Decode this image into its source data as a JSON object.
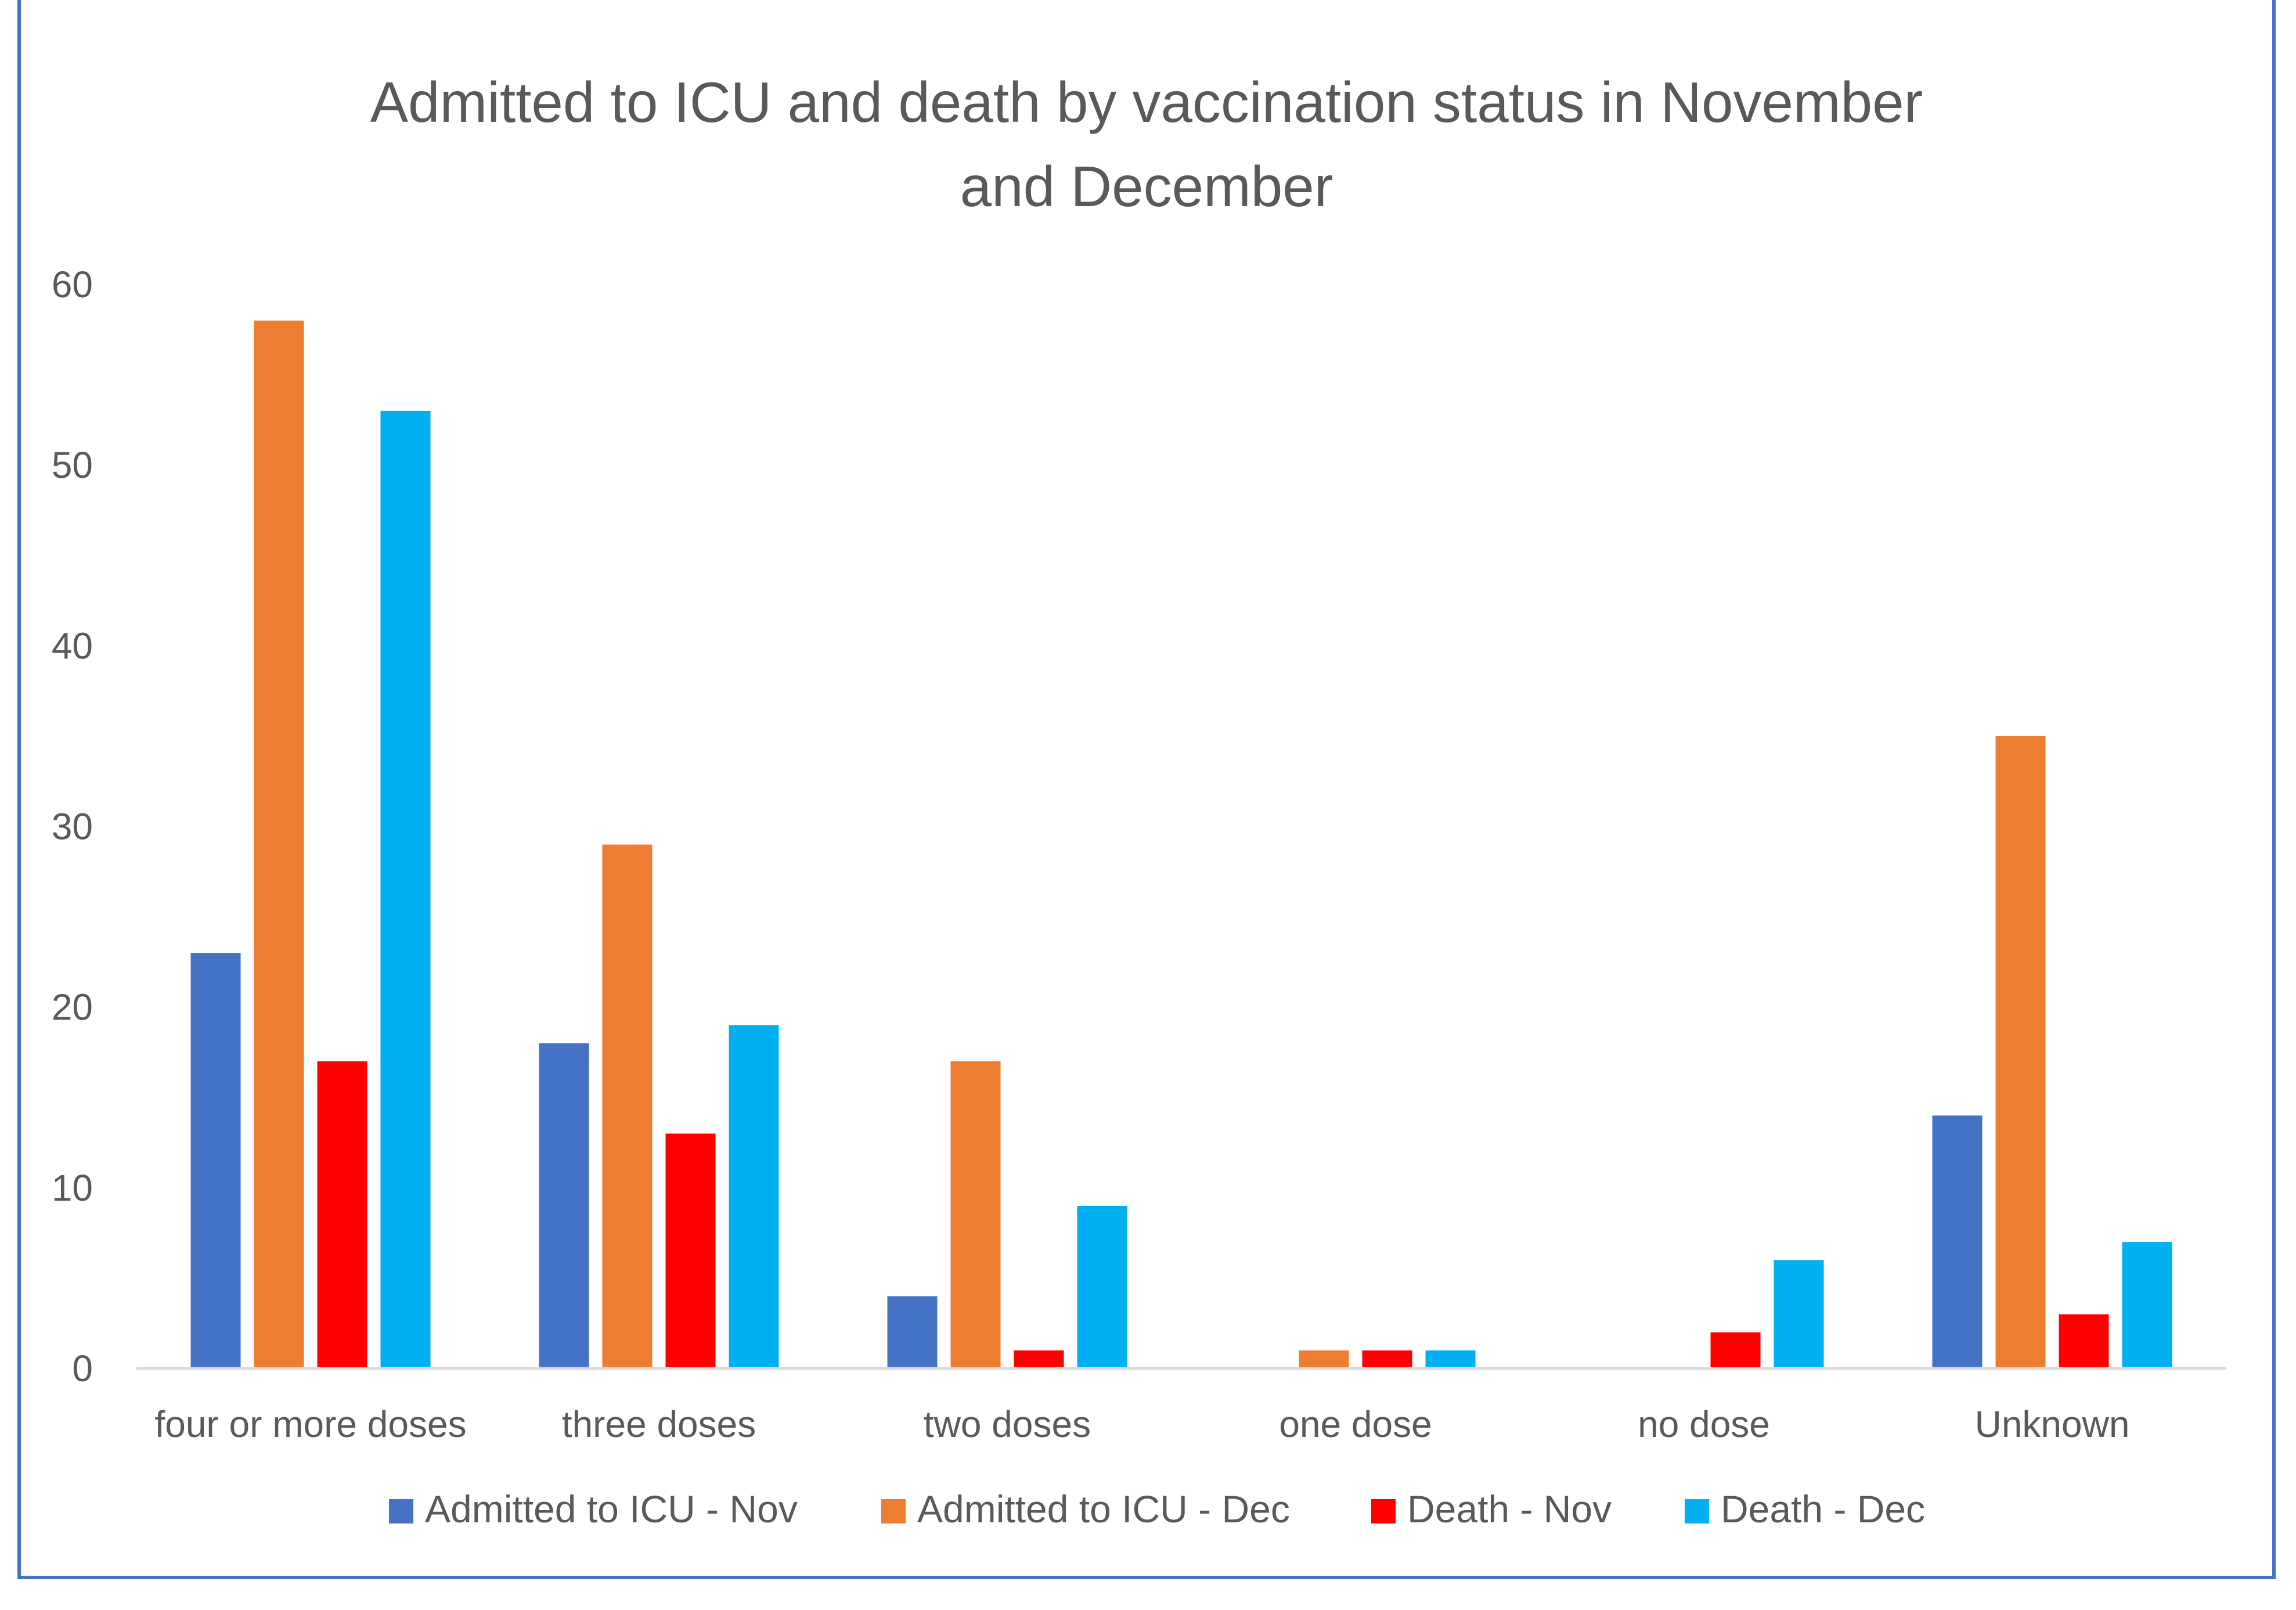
{
  "chart_data": {
    "type": "bar",
    "title": "Admitted to ICU and death by vaccination status in November and December",
    "title_lines": [
      "Admitted to ICU and death by vaccination status in November",
      "and December"
    ],
    "xlabel": "",
    "ylabel": "",
    "ylim": [
      0,
      60
    ],
    "yticks": [
      "0",
      "10",
      "20",
      "30",
      "40",
      "50",
      "60"
    ],
    "grid": false,
    "legend_position": "bottom",
    "categories": [
      "four or more doses",
      "three doses",
      "two doses",
      "one dose",
      "no dose",
      "Unknown"
    ],
    "series": [
      {
        "name": "Admitted to ICU - Nov",
        "color": "#4472C4",
        "values": [
          23,
          18,
          4,
          0,
          0,
          14
        ]
      },
      {
        "name": "Admitted to ICU - Dec",
        "color": "#ED7D31",
        "values": [
          58,
          29,
          17,
          1,
          0,
          35
        ]
      },
      {
        "name": "Death - Nov",
        "color": "#FF0000",
        "values": [
          17,
          13,
          1,
          1,
          2,
          3
        ]
      },
      {
        "name": "Death - Dec",
        "color": "#00B0F0",
        "values": [
          53,
          19,
          9,
          1,
          6,
          7
        ]
      }
    ]
  },
  "colors": {
    "frame": "#4472C4",
    "text": "#595959",
    "axis": "#D9D9D9"
  }
}
